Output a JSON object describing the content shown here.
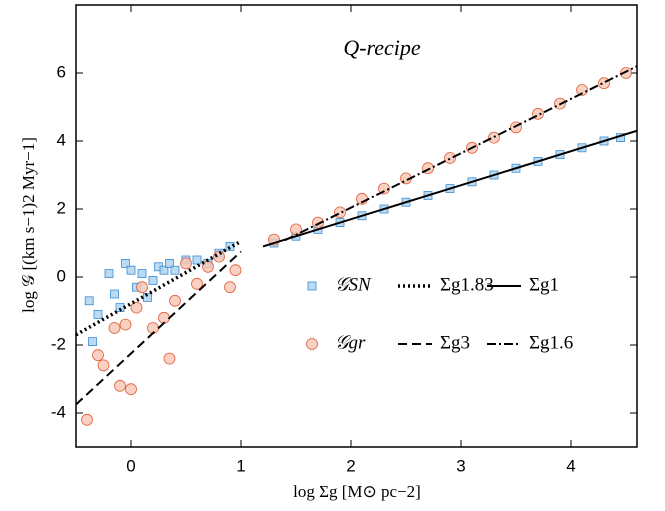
{
  "chart_data": {
    "type": "scatter",
    "title": "Q-recipe",
    "x_label": "log Σg [M⊙ pc−2]",
    "y_label": "log 𝒢 [(km s−1)2 Myr−1]",
    "xlim": [
      -0.5,
      4.6
    ],
    "ylim": [
      -5,
      8
    ],
    "xticks": [
      0,
      1,
      2,
      3,
      4
    ],
    "yticks": [
      -4,
      -2,
      0,
      2,
      4,
      6
    ],
    "series": [
      {
        "name": "𝒢SN",
        "kind": "points",
        "marker": "square",
        "color": "#3c8dd0",
        "x": [
          -0.38,
          -0.35,
          -0.3,
          -0.2,
          -0.15,
          -0.1,
          -0.05,
          0,
          0.05,
          0.1,
          0.15,
          0.2,
          0.25,
          0.3,
          0.35,
          0.4,
          0.5,
          0.6,
          0.7,
          0.8,
          0.9,
          1.3,
          1.5,
          1.7,
          1.9,
          2.1,
          2.3,
          2.5,
          2.7,
          2.9,
          3.1,
          3.3,
          3.5,
          3.7,
          3.9,
          4.1,
          4.3,
          4.45
        ],
        "values": [
          -0.7,
          -1.9,
          -1.1,
          0.1,
          -0.5,
          -0.9,
          0.4,
          0.2,
          -0.3,
          0.1,
          -0.6,
          -0.1,
          0.3,
          0.2,
          0.4,
          0.2,
          0.5,
          0.5,
          0.4,
          0.7,
          0.9,
          1.0,
          1.2,
          1.4,
          1.6,
          1.8,
          2.0,
          2.2,
          2.4,
          2.6,
          2.8,
          3.0,
          3.2,
          3.4,
          3.6,
          3.8,
          4.0,
          4.1
        ]
      },
      {
        "name": "𝒢gr",
        "kind": "points",
        "marker": "circle",
        "color": "#e0603a",
        "x": [
          -0.4,
          -0.3,
          -0.25,
          -0.15,
          -0.1,
          -0.05,
          0,
          0.05,
          0.1,
          0.2,
          0.3,
          0.35,
          0.4,
          0.5,
          0.6,
          0.7,
          0.8,
          0.9,
          0.95,
          1.3,
          1.5,
          1.7,
          1.9,
          2.1,
          2.3,
          2.5,
          2.7,
          2.9,
          3.1,
          3.3,
          3.5,
          3.7,
          3.9,
          4.1,
          4.3,
          4.5
        ],
        "values": [
          -4.2,
          -2.3,
          -2.6,
          -1.5,
          -3.2,
          -1.4,
          -3.3,
          -0.9,
          -0.3,
          -1.5,
          -1.2,
          -2.4,
          -0.7,
          0.4,
          -0.2,
          0.3,
          0.6,
          -0.3,
          0.2,
          1.1,
          1.4,
          1.6,
          1.9,
          2.3,
          2.6,
          2.9,
          3.2,
          3.5,
          3.8,
          4.1,
          4.4,
          4.8,
          5.1,
          5.5,
          5.7,
          6.0
        ]
      },
      {
        "name": "Σg1.83",
        "kind": "line",
        "linestyle": "dotted",
        "color": "#000000",
        "x": [
          -0.5,
          1
        ],
        "values": [
          -1.7,
          1.05
        ]
      },
      {
        "name": "Σg1",
        "kind": "line",
        "linestyle": "solid",
        "color": "#000000",
        "x": [
          1.2,
          4.6
        ],
        "values": [
          0.9,
          4.3
        ]
      },
      {
        "name": "Σg3",
        "kind": "line",
        "linestyle": "dashed",
        "color": "#000000",
        "x": [
          -0.5,
          1
        ],
        "values": [
          -3.75,
          0.75
        ]
      },
      {
        "name": "Σg1.6",
        "kind": "line",
        "linestyle": "dashdot",
        "color": "#000000",
        "x": [
          1.4,
          4.6
        ],
        "values": [
          1.08,
          6.2
        ]
      }
    ]
  }
}
